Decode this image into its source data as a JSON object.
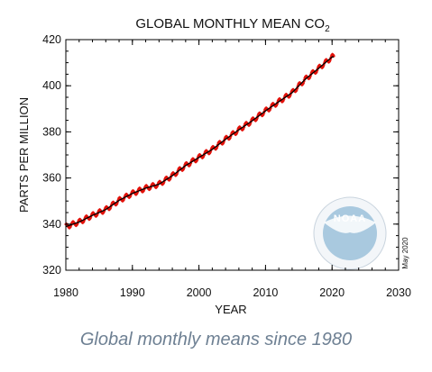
{
  "chart_data": {
    "type": "line",
    "title": "GLOBAL MONTHLY MEAN CO",
    "title_subscript": "2",
    "xlabel": "YEAR",
    "ylabel": "PARTS PER MILLION",
    "xlim": [
      1980,
      2030
    ],
    "ylim": [
      320,
      420
    ],
    "x_ticks": [
      "1980",
      "1990",
      "2000",
      "2010",
      "2020",
      "2030"
    ],
    "y_ticks": [
      "320",
      "340",
      "360",
      "380",
      "400",
      "420"
    ],
    "grid": false,
    "series": [
      {
        "style": "monthly means (red diamonds) with black trend line",
        "color": "#e3120b",
        "trend_color": "#000000",
        "x": [
          1980,
          1982,
          1984,
          1986,
          1988,
          1990,
          1992,
          1994,
          1996,
          1998,
          2000,
          2002,
          2004,
          2006,
          2008,
          2010,
          2012,
          2014,
          2016,
          2018,
          2020
        ],
        "y": [
          338.9,
          340.9,
          343.8,
          346.3,
          350.3,
          353.3,
          355.6,
          357.3,
          361.0,
          365.4,
          368.9,
          372.4,
          376.8,
          380.9,
          384.8,
          389.1,
          393.1,
          397.0,
          402.9,
          407.6,
          412.5
        ]
      }
    ],
    "annotations": [
      "May 2020"
    ],
    "logo": {
      "name": "noaa-logo",
      "text": "NOAA"
    }
  },
  "caption": "Global monthly means since 1980",
  "colors": {
    "data": "#e3120b",
    "caption": "#6e8093",
    "logo_blue": "#9fc3db"
  }
}
